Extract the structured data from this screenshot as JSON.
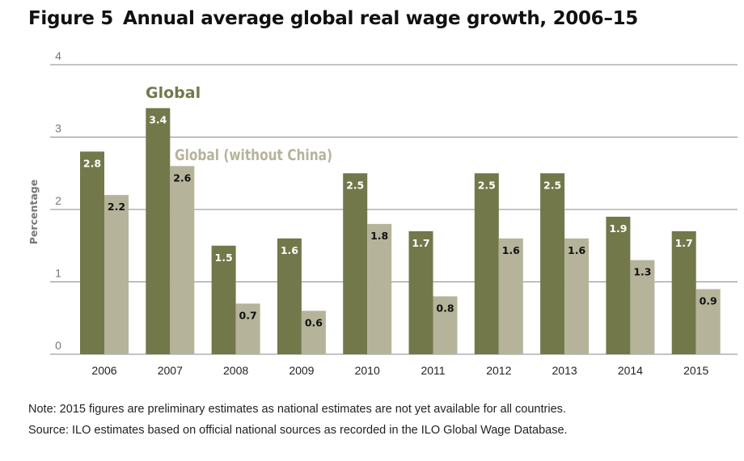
{
  "figure": {
    "label": "Figure 5",
    "title": "Annual average global real wage growth, 2006–15"
  },
  "notes": {
    "note": "Note: 2015 figures are preliminary estimates as national estimates are not yet available for all countries.",
    "source": "Source: ILO estimates based on official national sources as recorded in the ILO Global Wage Database."
  },
  "colors": {
    "global": "#72784a",
    "global_without_china": "#b5b49b",
    "gridline": "#8a8a8a",
    "tick_text": "#777777"
  },
  "chart_data": {
    "type": "bar",
    "title": "",
    "xlabel": "",
    "ylabel": "Percentage",
    "ylim": [
      0,
      4
    ],
    "yticks": [
      0,
      1,
      2,
      3,
      4
    ],
    "grid": true,
    "legend_placement": "inline labels above 2007 bars",
    "categories": [
      "2006",
      "2007",
      "2008",
      "2009",
      "2010",
      "2011",
      "2012",
      "2013",
      "2014",
      "2015"
    ],
    "series": [
      {
        "name": "Global",
        "values": [
          2.8,
          3.4,
          1.5,
          1.6,
          2.5,
          1.7,
          2.5,
          2.5,
          1.9,
          1.7
        ]
      },
      {
        "name": "Global (without China)",
        "values": [
          2.2,
          2.6,
          0.7,
          0.6,
          1.8,
          0.8,
          1.6,
          1.6,
          1.3,
          0.9
        ]
      }
    ]
  }
}
